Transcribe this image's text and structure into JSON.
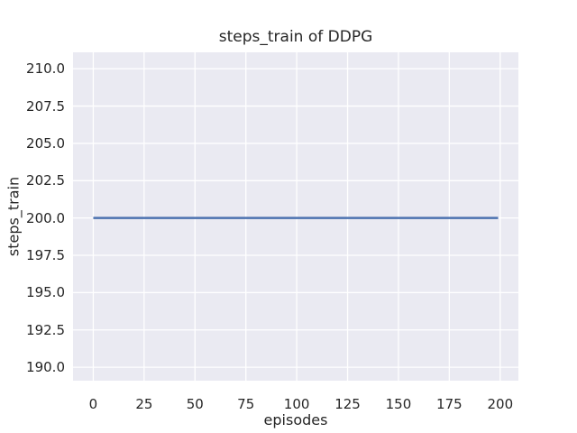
{
  "chart_data": {
    "type": "line",
    "title": "steps_train of DDPG",
    "xlabel": "episodes",
    "ylabel": "steps_train",
    "x_tick_labels": [
      "0",
      "25",
      "50",
      "75",
      "100",
      "125",
      "150",
      "175",
      "200"
    ],
    "x_tick_values": [
      0,
      25,
      50,
      75,
      100,
      125,
      150,
      175,
      200
    ],
    "y_tick_labels": [
      "190.0",
      "192.5",
      "195.0",
      "197.5",
      "200.0",
      "202.5",
      "205.0",
      "207.5",
      "210.0"
    ],
    "y_tick_values": [
      190,
      192.5,
      195,
      197.5,
      200,
      202.5,
      205,
      207.5,
      210
    ],
    "xlim": [
      -9.95,
      208.95
    ],
    "ylim": [
      189.1,
      211.1
    ],
    "grid": true,
    "legend": false,
    "series": [
      {
        "name": "steps_train",
        "x": [
          0,
          199
        ],
        "y": [
          200,
          200
        ],
        "note": "constant value 200 for all episodes 0-199",
        "color": "#4C72B0",
        "linewidth": 2.5
      }
    ],
    "colors": {
      "figure_bg": "#ffffff",
      "axes_bg": "#EAEAF2",
      "grid": "#ffffff",
      "text": "#262626"
    }
  }
}
